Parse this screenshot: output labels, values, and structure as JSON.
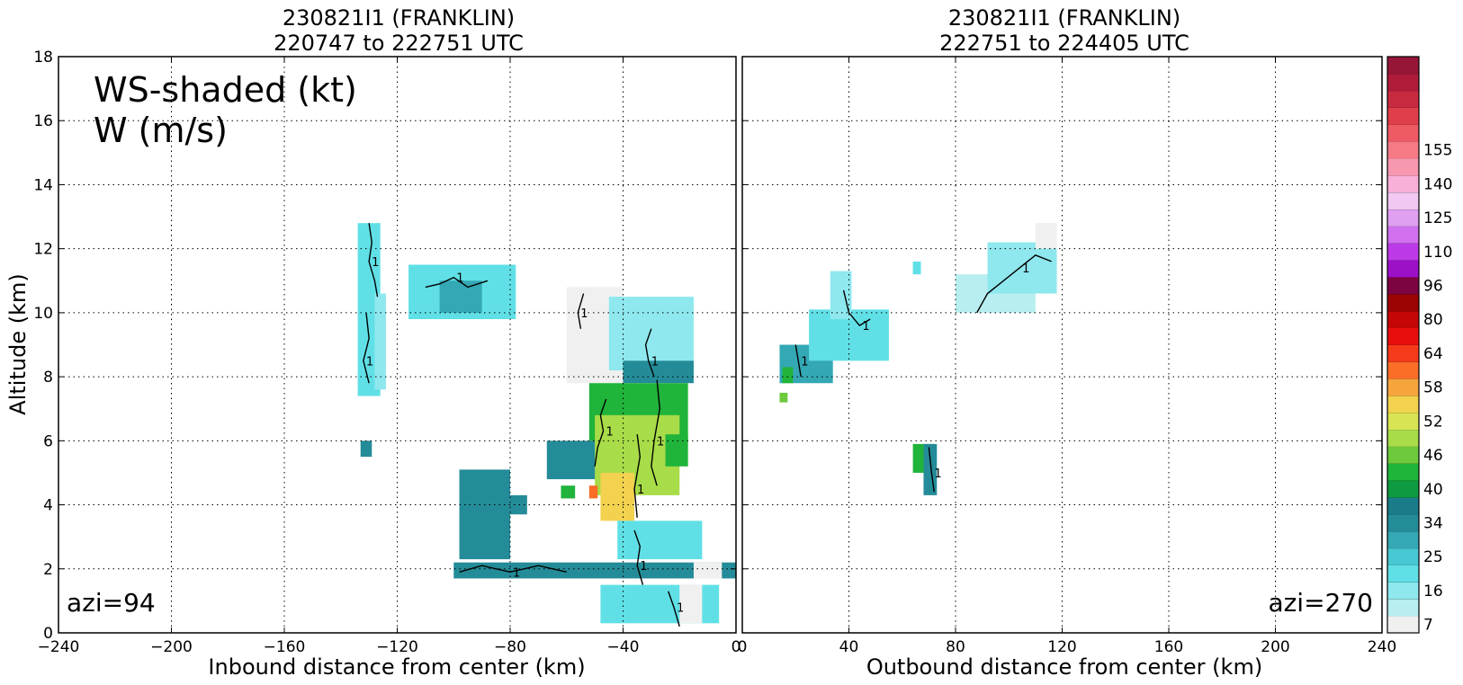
{
  "chart_data": [
    {
      "type": "heatmap",
      "title_line1": "230821I1 (FRANKLIN)",
      "title_line2": "220747 to 222751 UTC",
      "xlabel": "Inbound distance from center (km)",
      "ylabel": "Altitude (km)",
      "xlim": [
        -240,
        0
      ],
      "ylim": [
        0,
        18
      ],
      "x_ticks": [
        "−240",
        "−200",
        "−160",
        "−120",
        "−80",
        "−40",
        "0"
      ],
      "y_ticks": [
        "0",
        "2",
        "4",
        "6",
        "8",
        "10",
        "12",
        "14",
        "16",
        "18"
      ],
      "grid": true,
      "annotation_line1": "WS-shaded (kt)",
      "annotation_line2": "W (m/s)",
      "azimuth_label": "azi=94",
      "contour_labels": [
        "1"
      ],
      "cells": [
        {
          "x": -134,
          "y": 7.4,
          "w": 8,
          "h": 5.4,
          "ws": 18
        },
        {
          "x": -128,
          "y": 7.6,
          "w": 4,
          "h": 3.0,
          "ws": 14
        },
        {
          "x": -133,
          "y": 5.5,
          "w": 4,
          "h": 0.5,
          "ws": 25
        },
        {
          "x": -116,
          "y": 9.8,
          "w": 38,
          "h": 1.7,
          "ws": 18
        },
        {
          "x": -105,
          "y": 10.0,
          "w": 15,
          "h": 1.0,
          "ws": 24
        },
        {
          "x": -98,
          "y": 2.3,
          "w": 18,
          "h": 2.8,
          "ws": 25
        },
        {
          "x": -100,
          "y": 1.7,
          "w": 100,
          "h": 0.5,
          "ws": 25
        },
        {
          "x": -82,
          "y": 3.7,
          "w": 8,
          "h": 0.6,
          "ws": 25
        },
        {
          "x": -62,
          "y": 4.2,
          "w": 5,
          "h": 0.4,
          "ws": 34
        },
        {
          "x": -67,
          "y": 4.8,
          "w": 30,
          "h": 1.2,
          "ws": 25
        },
        {
          "x": -60,
          "y": 7.8,
          "w": 20,
          "h": 3.0,
          "ws": 7
        },
        {
          "x": -45,
          "y": 8.2,
          "w": 30,
          "h": 2.3,
          "ws": 14
        },
        {
          "x": -40,
          "y": 7.8,
          "w": 25,
          "h": 0.7,
          "ws": 25
        },
        {
          "x": -52,
          "y": 6.0,
          "w": 35,
          "h": 1.8,
          "ws": 34
        },
        {
          "x": -50,
          "y": 4.3,
          "w": 30,
          "h": 2.5,
          "ws": 40
        },
        {
          "x": -48,
          "y": 3.5,
          "w": 12,
          "h": 1.5,
          "ws": 46
        },
        {
          "x": -52,
          "y": 4.2,
          "w": 3,
          "h": 0.4,
          "ws": 52
        },
        {
          "x": -25,
          "y": 5.2,
          "w": 8,
          "h": 1.0,
          "ws": 34
        },
        {
          "x": -42,
          "y": 2.3,
          "w": 30,
          "h": 1.2,
          "ws": 16
        },
        {
          "x": -48,
          "y": 0.3,
          "w": 42,
          "h": 1.2,
          "ws": 18
        },
        {
          "x": -20,
          "y": 0.3,
          "w": 8,
          "h": 1.2,
          "ws": 7
        },
        {
          "x": -15,
          "y": 1.7,
          "w": 10,
          "h": 0.5,
          "ws": 7
        }
      ],
      "contours": [
        {
          "x": [
            -130,
            -129,
            -130,
            -128,
            -127
          ],
          "y": [
            12.8,
            12.2,
            11.6,
            11.0,
            10.5
          ]
        },
        {
          "x": [
            -131,
            -130,
            -132,
            -130
          ],
          "y": [
            10.0,
            9.2,
            8.5,
            7.8
          ]
        },
        {
          "x": [
            -110,
            -105,
            -100,
            -95,
            -88
          ],
          "y": [
            10.8,
            10.9,
            11.1,
            10.8,
            11.0
          ]
        },
        {
          "x": [
            -55,
            -56,
            -54
          ],
          "y": [
            9.5,
            10.0,
            10.6
          ]
        },
        {
          "x": [
            -30,
            -32,
            -31,
            -29
          ],
          "y": [
            9.5,
            9.0,
            8.5,
            8.0
          ]
        },
        {
          "x": [
            -46,
            -48,
            -47,
            -49,
            -50
          ],
          "y": [
            7.3,
            6.8,
            6.3,
            5.8,
            5.2
          ]
        },
        {
          "x": [
            -35,
            -34,
            -36,
            -35
          ],
          "y": [
            6.2,
            5.5,
            4.5,
            3.6
          ]
        },
        {
          "x": [
            -28,
            -27,
            -29,
            -30,
            -28
          ],
          "y": [
            7.9,
            7.0,
            6.0,
            5.2,
            4.6
          ]
        },
        {
          "x": [
            -36,
            -34,
            -35,
            -33
          ],
          "y": [
            3.2,
            2.7,
            2.1,
            1.5
          ]
        },
        {
          "x": [
            -98,
            -90,
            -80,
            -70,
            -60
          ],
          "y": [
            1.9,
            2.1,
            1.9,
            2.1,
            1.9
          ]
        },
        {
          "x": [
            -24,
            -22,
            -20
          ],
          "y": [
            1.3,
            0.8,
            0.2
          ]
        }
      ]
    },
    {
      "type": "heatmap",
      "title_line1": "230821I1 (FRANKLIN)",
      "title_line2": "222751 to 224405 UTC",
      "xlabel": "Outbound distance from center (km)",
      "xlim": [
        0,
        240
      ],
      "ylim": [
        0,
        18
      ],
      "x_ticks": [
        "0",
        "40",
        "80",
        "120",
        "160",
        "200",
        "240"
      ],
      "y_ticks": [
        "0",
        "2",
        "4",
        "6",
        "8",
        "10",
        "12",
        "14",
        "16",
        "18"
      ],
      "grid": true,
      "azimuth_label": "azi=270",
      "contour_labels": [
        "1"
      ],
      "cells": [
        {
          "x": 14,
          "y": 7.8,
          "w": 20,
          "h": 1.2,
          "ws": 24
        },
        {
          "x": 25,
          "y": 8.5,
          "w": 30,
          "h": 1.6,
          "ws": 18
        },
        {
          "x": 33,
          "y": 9.8,
          "w": 8,
          "h": 1.5,
          "ws": 14
        },
        {
          "x": 15,
          "y": 7.8,
          "w": 4,
          "h": 0.5,
          "ws": 34
        },
        {
          "x": 14,
          "y": 7.2,
          "w": 3,
          "h": 0.3,
          "ws": 37
        },
        {
          "x": 64,
          "y": 5.0,
          "w": 8,
          "h": 0.9,
          "ws": 34
        },
        {
          "x": 68,
          "y": 4.3,
          "w": 5,
          "h": 1.6,
          "ws": 25
        },
        {
          "x": 80,
          "y": 10.0,
          "w": 30,
          "h": 1.2,
          "ws": 10
        },
        {
          "x": 92,
          "y": 10.6,
          "w": 26,
          "h": 1.6,
          "ws": 14
        },
        {
          "x": 110,
          "y": 12.0,
          "w": 8,
          "h": 0.8,
          "ws": 7
        },
        {
          "x": 64,
          "y": 11.2,
          "w": 3,
          "h": 0.4,
          "ws": 16
        }
      ],
      "contours": [
        {
          "x": [
            20,
            21,
            22
          ],
          "y": [
            9.0,
            8.5,
            8.0
          ]
        },
        {
          "x": [
            38,
            40,
            44,
            48
          ],
          "y": [
            10.7,
            10.0,
            9.6,
            9.8
          ]
        },
        {
          "x": [
            88,
            92,
            98,
            104,
            110,
            116
          ],
          "y": [
            10.0,
            10.6,
            11.0,
            11.4,
            11.8,
            11.6
          ]
        },
        {
          "x": [
            70,
            71,
            72
          ],
          "y": [
            5.8,
            5.0,
            4.4
          ]
        }
      ]
    }
  ],
  "colorbar": {
    "tick_labels": [
      "7",
      "16",
      "25",
      "34",
      "40",
      "46",
      "52",
      "58",
      "64",
      "80",
      "96",
      "110",
      "125",
      "140",
      "155"
    ],
    "tick_indices": [
      0,
      2,
      4,
      6,
      8,
      10,
      12,
      14,
      16,
      18,
      20,
      22,
      24,
      26,
      28
    ],
    "colors": [
      "#f0f0f0",
      "#b8eef0",
      "#8ee8ee",
      "#60e0e6",
      "#48c8d2",
      "#34a8b4",
      "#248c98",
      "#1a7c88",
      "#0e9a40",
      "#20b43a",
      "#6cca3c",
      "#a8dc48",
      "#d8e454",
      "#f2d24e",
      "#f6a43c",
      "#fa6e28",
      "#f43a1a",
      "#e80e0e",
      "#c40606",
      "#9c0404",
      "#7c0440",
      "#9c10c8",
      "#bc3ae6",
      "#d070ee",
      "#e0a0f2",
      "#f0c8f2",
      "#f8b0d8",
      "#f898b0",
      "#f47a86",
      "#ee5a64",
      "#e03e4a",
      "#c82a40",
      "#ae1c3a",
      "#961638"
    ],
    "bounds": [
      7,
      10,
      13,
      16,
      19,
      22,
      25,
      28,
      31,
      34,
      37,
      40,
      43,
      46,
      49,
      52,
      55,
      58,
      61,
      64,
      72,
      80,
      88,
      96,
      103,
      110,
      117,
      125,
      132,
      140,
      147,
      155,
      162,
      170
    ]
  }
}
